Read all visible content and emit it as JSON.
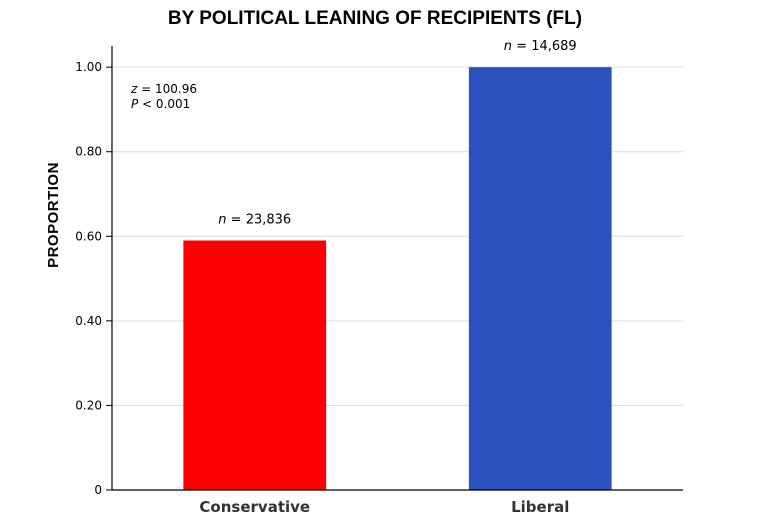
{
  "chart_data": {
    "type": "bar",
    "title": "BY POLITICAL LEANING OF RECIPIENTS (FL)",
    "xlabel": "",
    "ylabel": "PROPORTION",
    "categories": [
      "Conservative",
      "Liberal"
    ],
    "values": [
      0.59,
      1.0
    ],
    "colors": [
      "#ff0000",
      "#2a52be"
    ],
    "n_labels": [
      {
        "italic": "n",
        "text": " = 23,836"
      },
      {
        "italic": "n",
        "text": " = 14,689"
      }
    ],
    "ylim": [
      0,
      1.05
    ],
    "yticks": [
      0,
      0.2,
      0.4,
      0.6,
      0.8,
      1.0
    ],
    "ytick_labels": [
      "0",
      "0.20",
      "0.40",
      "0.60",
      "0.80",
      "1.00"
    ],
    "grid": "horizontal",
    "annotation": [
      {
        "italic": "z",
        "text": " = 100.96"
      },
      {
        "italic": "P",
        "text": " < 0.001"
      }
    ]
  }
}
